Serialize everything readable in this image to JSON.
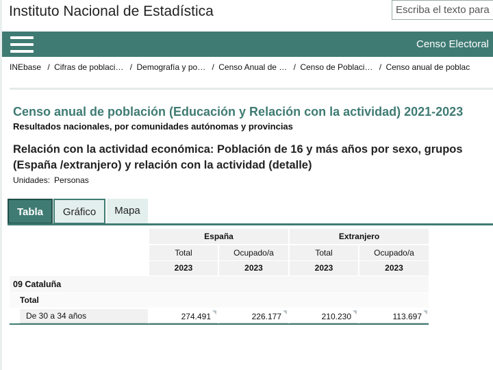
{
  "header": {
    "site_title": "Instituto Nacional de Estadística",
    "search_placeholder": "Escriba el texto para"
  },
  "nav": {
    "title": "Censo Electoral"
  },
  "breadcrumb": [
    "INEbase",
    "Cifras de poblaci…",
    "Demografía y po…",
    "Censo Anual de …",
    "Censo de Poblaci…",
    "Censo anual de poblac"
  ],
  "breadcrumb_sep": "/",
  "page": {
    "title": "Censo anual de población (Educación y Relación con la actividad) 2021-2023",
    "subtitle": "Resultados nacionales, por comunidades autónomas y provincias",
    "table_title_line1": "Relación con la actividad económica: Población de 16 y más años por sexo, grupos",
    "table_title_line2": "(España /extranjero) y relación con la actividad (detalle)",
    "units_label": "Unidades:",
    "units_value": "Personas"
  },
  "tabs": [
    {
      "label": "Tabla",
      "active": true
    },
    {
      "label": "Gráfico",
      "active": false
    },
    {
      "label": "Mapa",
      "active": false
    }
  ],
  "table": {
    "groups": [
      "España",
      "Extranjero"
    ],
    "columns": [
      "Total",
      "Ocupado/a",
      "Total",
      "Ocupado/a"
    ],
    "years": [
      "2023",
      "2023",
      "2023",
      "2023"
    ],
    "region": "09 Cataluña",
    "sex": "Total",
    "row_label": "De 30 a 34 años",
    "values": [
      "274.491",
      "226.177",
      "210.230",
      "113.697"
    ]
  },
  "colors": {
    "accent": "#3f7b73",
    "tab_inactive_bg": "#e3efed",
    "header_bg": "#f1f1f1"
  }
}
